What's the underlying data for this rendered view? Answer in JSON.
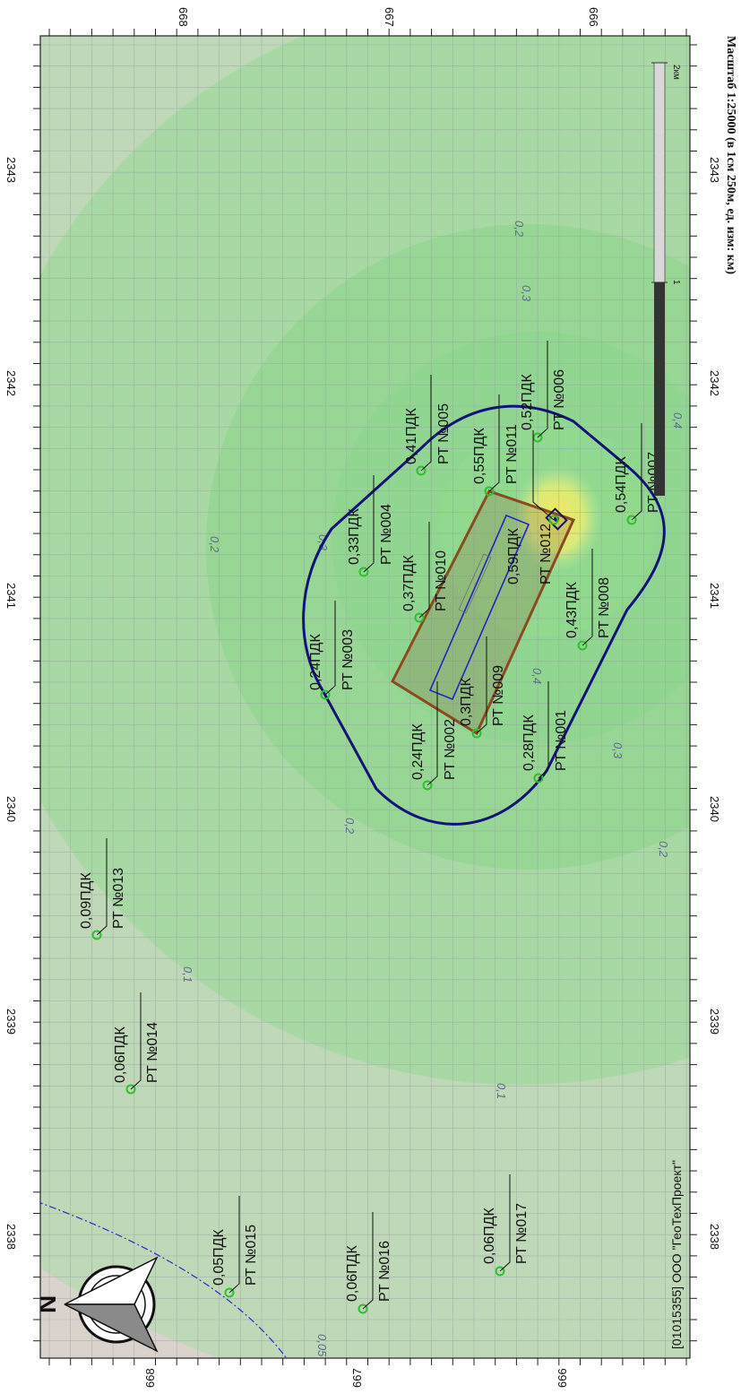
{
  "map": {
    "scale_text": "Масштаб 1:25000 (в 1см 250м, ед. изм: км)",
    "copyright": "[01015355] ООО \"ГеоТехПроект\"",
    "compass_label": "N",
    "scalebar": {
      "label_start": "0",
      "label_mid": "1",
      "label_end": "2км"
    },
    "axis_top": [
      "668",
      "667",
      "666"
    ],
    "axis_bottom": [
      "668",
      "667",
      "666"
    ],
    "axis_left": [
      "2343",
      "2342",
      "2341",
      "2340",
      "2339",
      "2338"
    ],
    "axis_right": [
      "2343",
      "2342",
      "2341",
      "2340",
      "2339",
      "2338"
    ],
    "isolines": [
      "0,1",
      "0,2",
      "0,2",
      "0,3",
      "0,2",
      "0,3",
      "0,4",
      "0,05",
      "0,1",
      "0,2",
      "0,3",
      "0,4"
    ],
    "points": [
      {
        "name": "РТ №001",
        "value": "0,28ПДК"
      },
      {
        "name": "РТ №002",
        "value": "0,24ПДК"
      },
      {
        "name": "РТ №003",
        "value": "0,24ПДК"
      },
      {
        "name": "РТ №004",
        "value": "0,33ПДК"
      },
      {
        "name": "РТ №005",
        "value": "0,41ПДК"
      },
      {
        "name": "РТ №006",
        "value": "0,52ПДК"
      },
      {
        "name": "РТ №007",
        "value": "0,54ПДК"
      },
      {
        "name": "РТ №008",
        "value": "0,43ПДК"
      },
      {
        "name": "РТ №009",
        "value": "0,3ПДК"
      },
      {
        "name": "РТ №010",
        "value": "0,37ПДК"
      },
      {
        "name": "РТ №011",
        "value": "0,55ПДК"
      },
      {
        "name": "РТ №012",
        "value": "0,59ПДК"
      },
      {
        "name": "РТ №013",
        "value": "0,09ПДК"
      },
      {
        "name": "РТ №014",
        "value": "0,06ПДК"
      },
      {
        "name": "РТ №015",
        "value": "0,05ПДК"
      },
      {
        "name": "РТ №016",
        "value": "0,06ПДК"
      },
      {
        "name": "РТ №017",
        "value": "0,06ПДК"
      }
    ],
    "colors": {
      "zone": "#8fd98f",
      "boundary": "#12127a",
      "site": "#8b4a1f",
      "point": "#2fbf2f",
      "hot": "#f2e47a"
    }
  }
}
